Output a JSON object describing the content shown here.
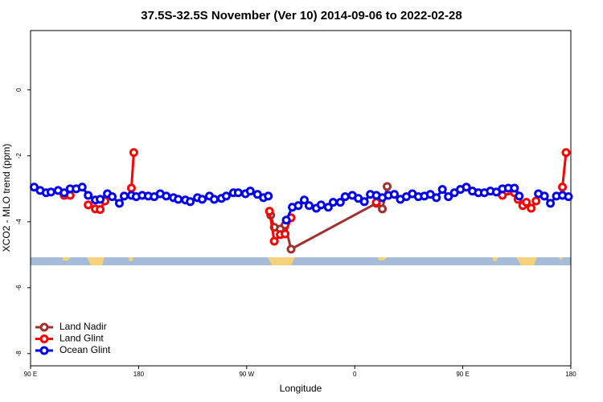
{
  "chart_data": {
    "type": "line",
    "title": "37.5S-32.5S November (Ver 10)   2014-09-06 to 2022-02-28",
    "x_label": "Longitude",
    "y_label": "XCO2 - MLO trend (ppm)",
    "xlim": [
      90,
      540
    ],
    "ylim": [
      -8.37,
      1.8
    ],
    "xticks": [
      {
        "value": 90,
        "label": "90 E"
      },
      180,
      {
        "value": 270,
        "label": "90 W"
      },
      {
        "value": 360,
        "label": "0"
      },
      {
        "value": 450,
        "label": "90 E"
      },
      {
        "value": 540,
        "label": "180"
      }
    ],
    "yticks": [
      0,
      -2,
      -4,
      -6,
      -8
    ],
    "legend": "bottom-left",
    "series": [
      {
        "name": "Land Nadir",
        "color": "#a03030",
        "x": [
          290,
          293,
          298,
          302,
          307,
          378,
          383,
          387
        ],
        "values": [
          -3.8,
          -4.17,
          -4.22,
          -4.1,
          -4.83,
          -3.44,
          -3.61,
          -2.93
        ]
      },
      {
        "name": "Land Glint",
        "color": "#ff0000",
        "x": [
          118,
          123,
          130,
          138,
          144,
          148,
          152,
          160,
          174,
          176,
          200,
          289,
          293,
          298,
          302,
          307,
          340,
          378,
          420,
          483,
          493,
          496,
          500,
          503,
          507,
          511,
          520,
          533,
          536
        ],
        "values": [
          -3.2,
          -3.2,
          null,
          -3.49,
          -3.61,
          -3.63,
          -3.37,
          null,
          -2.98,
          -1.9,
          null,
          -3.68,
          -4.59,
          -4.39,
          -4.37,
          -3.88,
          null,
          -3.41,
          null,
          -3.2,
          -3.12,
          -3.32,
          -3.51,
          -3.41,
          -3.59,
          -3.37,
          null,
          -2.95,
          -1.9
        ]
      },
      {
        "name": "Ocean Glint",
        "color": "#0000ee",
        "x": [
          93,
          98,
          103,
          107,
          113,
          118,
          123,
          128,
          133,
          138,
          144,
          148,
          154,
          158,
          164,
          168,
          174,
          178,
          183,
          188,
          193,
          198,
          203,
          209,
          213,
          219,
          223,
          229,
          233,
          239,
          243,
          249,
          253,
          259,
          263,
          269,
          273,
          279,
          284,
          288,
          295,
          303,
          308,
          313,
          318,
          322,
          328,
          332,
          338,
          342,
          348,
          352,
          358,
          363,
          368,
          373,
          378,
          383,
          388,
          393,
          398,
          403,
          408,
          413,
          418,
          423,
          428,
          433,
          438,
          443,
          448,
          453,
          458,
          463,
          468,
          473,
          478,
          483,
          488,
          493,
          497,
          505,
          513,
          518,
          523,
          528,
          533,
          538
        ],
        "values": [
          -2.95,
          -3.05,
          -3.12,
          -3.1,
          -3.05,
          -3.12,
          -3.0,
          -3.0,
          -2.95,
          -3.2,
          -3.34,
          -3.32,
          -3.15,
          -3.24,
          -3.44,
          -3.22,
          -3.2,
          -3.24,
          -3.2,
          -3.22,
          -3.24,
          -3.15,
          -3.22,
          -3.27,
          -3.32,
          -3.34,
          -3.39,
          -3.27,
          -3.32,
          -3.22,
          -3.32,
          -3.29,
          -3.22,
          -3.12,
          -3.12,
          -3.15,
          -3.07,
          -3.17,
          -3.27,
          -3.22,
          null,
          -3.95,
          -3.56,
          -3.51,
          -3.34,
          -3.51,
          -3.59,
          -3.49,
          -3.56,
          -3.41,
          -3.41,
          -3.24,
          -3.2,
          -3.29,
          -3.39,
          -3.17,
          -3.2,
          -3.27,
          -3.2,
          -3.17,
          -3.32,
          -3.24,
          -3.15,
          -3.24,
          -3.22,
          -3.17,
          -3.27,
          -3.02,
          -3.24,
          -3.12,
          -3.02,
          -2.95,
          -3.07,
          -3.12,
          -3.12,
          -3.07,
          -3.1,
          -3.0,
          -2.98,
          -2.98,
          -3.22,
          null,
          -3.15,
          -3.22,
          -3.44,
          -3.22,
          -3.2,
          -3.24
        ]
      }
    ]
  }
}
